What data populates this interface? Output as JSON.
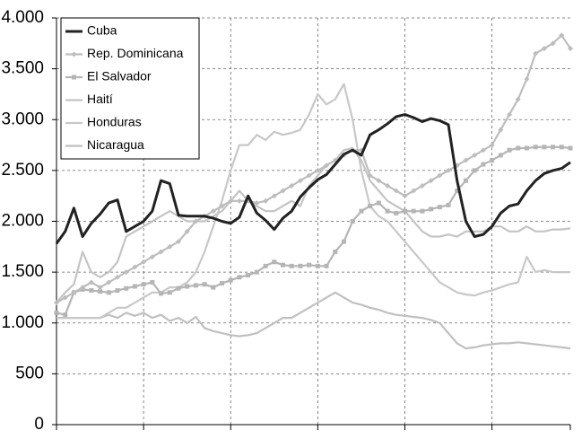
{
  "chart_data": {
    "type": "line",
    "categories": [
      null,
      null,
      null,
      null,
      null,
      null,
      null,
      null,
      null,
      null,
      null,
      null,
      null,
      null,
      null,
      null,
      null,
      null,
      null,
      null,
      null,
      null,
      null,
      null,
      null,
      null,
      null,
      null,
      null,
      null,
      null,
      null,
      null,
      null,
      null,
      null,
      null,
      null,
      null,
      null,
      null,
      null,
      null,
      null,
      null,
      null,
      null,
      null,
      null,
      null,
      null,
      null,
      null,
      null,
      null,
      null,
      null,
      null,
      null,
      null
    ],
    "ylim": [
      0,
      4000
    ],
    "yticks": [
      0,
      500,
      {
        "value": 1000,
        "label": "1.000"
      },
      {
        "value": 1500,
        "label": "1.500"
      },
      {
        "value": 2000,
        "label": "2.000"
      },
      {
        "value": 2500,
        "label": "2.500"
      },
      {
        "value": 3000,
        "label": "3.000"
      },
      {
        "value": 3500,
        "label": "3.500"
      },
      {
        "value": 4000,
        "label": "4.000"
      }
    ],
    "grid": true,
    "legend": "top-left",
    "series": [
      {
        "name": "Cuba",
        "color": "#222222",
        "values": [
          1780,
          1900,
          2130,
          1850,
          1980,
          2070,
          2180,
          2210,
          1900,
          1950,
          2000,
          2100,
          2400,
          2370,
          2060,
          2050,
          2050,
          2050,
          2030,
          2000,
          1980,
          2040,
          2250,
          2080,
          2010,
          1920,
          2030,
          2100,
          2240,
          2330,
          2410,
          2460,
          2560,
          2660,
          2700,
          2650,
          2850,
          2900,
          2960,
          3030,
          3050,
          3020,
          2980,
          3010,
          2990,
          2950,
          2400,
          2000,
          1850,
          1870,
          1950,
          2080,
          2150,
          2170,
          2300,
          2400,
          2470,
          2500,
          2520,
          2580
        ]
      },
      {
        "name": "Rep. Dominicana",
        "color": "#bdbdbd",
        "marker": "diamond",
        "values": [
          1200,
          1250,
          1300,
          1350,
          1400,
          1350,
          1400,
          1450,
          1500,
          1550,
          1600,
          1650,
          1700,
          1750,
          1800,
          1900,
          2000,
          2050,
          2100,
          2150,
          2200,
          2200,
          2200,
          2180,
          2200,
          2250,
          2300,
          2350,
          2400,
          2450,
          2500,
          2550,
          2600,
          2650,
          2700,
          2700,
          2450,
          2400,
          2350,
          2300,
          2250,
          2300,
          2350,
          2400,
          2450,
          2500,
          2550,
          2600,
          2650,
          2700,
          2750,
          2900,
          3050,
          3200,
          3400,
          3650,
          3700,
          3750,
          3830,
          3700
        ]
      },
      {
        "name": "El Salvador",
        "color": "#b5b5b5",
        "marker": "square",
        "values": [
          1100,
          1080,
          1300,
          1330,
          1320,
          1310,
          1300,
          1320,
          1340,
          1360,
          1380,
          1400,
          1290,
          1300,
          1340,
          1360,
          1370,
          1380,
          1350,
          1390,
          1420,
          1450,
          1470,
          1500,
          1560,
          1600,
          1570,
          1560,
          1560,
          1570,
          1560,
          1560,
          1700,
          1800,
          2000,
          2100,
          2150,
          2180,
          2100,
          2080,
          2100,
          2100,
          2100,
          2120,
          2140,
          2160,
          2300,
          2400,
          2500,
          2560,
          2600,
          2650,
          2700,
          2720,
          2720,
          2730,
          2730,
          2730,
          2730,
          2720
        ]
      },
      {
        "name": "Haití",
        "color": "#c4c4c4",
        "values": [
          1200,
          1300,
          1380,
          1700,
          1500,
          1450,
          1500,
          1600,
          1850,
          1900,
          1950,
          2000,
          2050,
          2100,
          2050,
          2000,
          2000,
          2000,
          2050,
          2100,
          2200,
          2300,
          2200,
          2150,
          2100,
          2100,
          2150,
          2200,
          2150,
          2350,
          2450,
          2550,
          2600,
          2700,
          2720,
          2600,
          2400,
          2300,
          2200,
          2150,
          2100,
          2000,
          1900,
          1850,
          1850,
          1870,
          1850,
          1900,
          1900,
          1900,
          1950,
          1950,
          1900,
          1900,
          1950,
          1900,
          1900,
          1920,
          1920,
          1930
        ]
      },
      {
        "name": "Honduras",
        "color": "#c8c8c8",
        "values": [
          1050,
          1050,
          1050,
          1050,
          1050,
          1050,
          1100,
          1150,
          1150,
          1200,
          1250,
          1300,
          1300,
          1350,
          1350,
          1400,
          1500,
          1700,
          1950,
          2200,
          2500,
          2750,
          2750,
          2850,
          2800,
          2880,
          2850,
          2870,
          2900,
          3050,
          3250,
          3150,
          3200,
          3350,
          3000,
          2500,
          2150,
          2050,
          2000,
          1900,
          1800,
          1700,
          1600,
          1500,
          1400,
          1350,
          1300,
          1280,
          1270,
          1300,
          1320,
          1350,
          1380,
          1400,
          1650,
          1500,
          1520,
          1500,
          1500,
          1500
        ]
      },
      {
        "name": "Nicaragua",
        "color": "#c0c0c0",
        "values": [
          1050,
          1050,
          1050,
          1050,
          1050,
          1050,
          1080,
          1050,
          1100,
          1070,
          1100,
          1050,
          1080,
          1020,
          1050,
          1000,
          1060,
          950,
          920,
          900,
          880,
          870,
          880,
          900,
          950,
          1000,
          1050,
          1050,
          1100,
          1150,
          1200,
          1250,
          1300,
          1250,
          1200,
          1180,
          1150,
          1130,
          1100,
          1080,
          1070,
          1060,
          1050,
          1030,
          1000,
          900,
          800,
          750,
          760,
          780,
          790,
          800,
          800,
          810,
          800,
          790,
          780,
          770,
          760,
          750
        ]
      }
    ]
  }
}
